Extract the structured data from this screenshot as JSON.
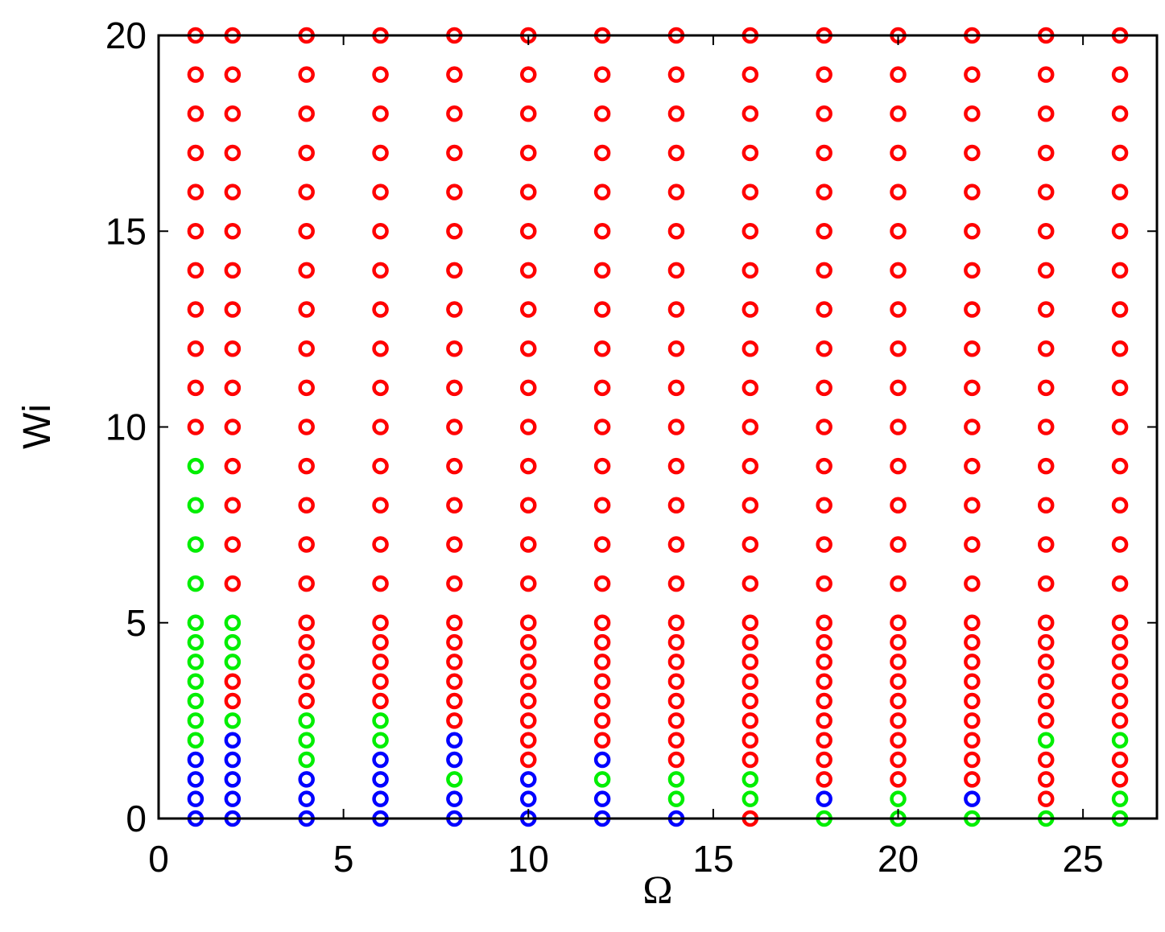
{
  "chart_data": {
    "type": "scatter",
    "xlabel": "Ω",
    "ylabel": "Wi",
    "xlim": [
      0,
      27
    ],
    "ylim": [
      0,
      20
    ],
    "xticks": [
      0,
      5,
      10,
      15,
      20,
      25
    ],
    "yticks": [
      0,
      5,
      10,
      15,
      20
    ],
    "series": [
      {
        "color": "#ff0000",
        "x": [
          1,
          1,
          1,
          1,
          1,
          1,
          1,
          1,
          1,
          1,
          1,
          2,
          2,
          2,
          2,
          2,
          2,
          2,
          2,
          2,
          2,
          2,
          2,
          2,
          2,
          2,
          2,
          2,
          4,
          4,
          4,
          4,
          4,
          4,
          4,
          4,
          4,
          4,
          4,
          4,
          4,
          4,
          4,
          4,
          4,
          4,
          4,
          4,
          6,
          6,
          6,
          6,
          6,
          6,
          6,
          6,
          6,
          6,
          6,
          6,
          6,
          6,
          6,
          6,
          6,
          6,
          6,
          6,
          8,
          8,
          8,
          8,
          8,
          8,
          8,
          8,
          8,
          8,
          8,
          8,
          8,
          8,
          8,
          8,
          8,
          8,
          8,
          8,
          8,
          10,
          10,
          10,
          10,
          10,
          10,
          10,
          10,
          10,
          10,
          10,
          10,
          10,
          10,
          10,
          10,
          10,
          10,
          10,
          10,
          10,
          10,
          10,
          12,
          12,
          12,
          12,
          12,
          12,
          12,
          12,
          12,
          12,
          12,
          12,
          12,
          12,
          12,
          12,
          12,
          12,
          12,
          12,
          12,
          12,
          14,
          14,
          14,
          14,
          14,
          14,
          14,
          14,
          14,
          14,
          14,
          14,
          14,
          14,
          14,
          14,
          14,
          14,
          14,
          14,
          14,
          14,
          14,
          16,
          16,
          16,
          16,
          16,
          16,
          16,
          16,
          16,
          16,
          16,
          16,
          16,
          16,
          16,
          16,
          16,
          16,
          16,
          16,
          16,
          16,
          16,
          16,
          18,
          18,
          18,
          18,
          18,
          18,
          18,
          18,
          18,
          18,
          18,
          18,
          18,
          18,
          18,
          18,
          18,
          18,
          18,
          18,
          18,
          18,
          18,
          18,
          20,
          20,
          20,
          20,
          20,
          20,
          20,
          20,
          20,
          20,
          20,
          20,
          20,
          20,
          20,
          20,
          20,
          20,
          20,
          20,
          20,
          20,
          20,
          20,
          22,
          22,
          22,
          22,
          22,
          22,
          22,
          22,
          22,
          22,
          22,
          22,
          22,
          22,
          22,
          22,
          22,
          22,
          22,
          22,
          22,
          22,
          22,
          22,
          24,
          24,
          24,
          24,
          24,
          24,
          24,
          24,
          24,
          24,
          24,
          24,
          24,
          24,
          24,
          24,
          24,
          24,
          24,
          24,
          24,
          24,
          24,
          24,
          26,
          26,
          26,
          26,
          26,
          26,
          26,
          26,
          26,
          26,
          26,
          26,
          26,
          26,
          26,
          26,
          26,
          26,
          26,
          26,
          26,
          26,
          26
        ],
        "y": [
          10,
          11,
          12,
          13,
          14,
          15,
          16,
          17,
          18,
          19,
          20,
          3,
          3.5,
          6,
          7,
          8,
          9,
          10,
          11,
          12,
          13,
          14,
          15,
          16,
          17,
          18,
          19,
          20,
          3,
          3.5,
          4,
          4.5,
          5,
          6,
          7,
          8,
          9,
          10,
          11,
          12,
          13,
          14,
          15,
          16,
          17,
          18,
          19,
          20,
          3,
          3.5,
          4,
          4.5,
          5,
          6,
          7,
          8,
          9,
          10,
          11,
          12,
          13,
          14,
          15,
          16,
          17,
          18,
          19,
          20,
          2.5,
          3,
          3.5,
          4,
          4.5,
          5,
          6,
          7,
          8,
          9,
          10,
          11,
          12,
          13,
          14,
          15,
          16,
          17,
          18,
          19,
          20,
          1.5,
          2,
          2.5,
          3,
          3.5,
          4,
          4.5,
          5,
          6,
          7,
          8,
          9,
          10,
          11,
          12,
          13,
          14,
          15,
          16,
          17,
          18,
          19,
          20,
          2,
          2.5,
          3,
          3.5,
          4,
          4.5,
          5,
          6,
          7,
          8,
          9,
          10,
          11,
          12,
          13,
          14,
          15,
          16,
          17,
          18,
          19,
          20,
          1.5,
          2,
          2.5,
          3,
          3.5,
          4,
          4.5,
          5,
          6,
          7,
          8,
          9,
          10,
          11,
          12,
          13,
          14,
          15,
          16,
          17,
          18,
          19,
          20,
          0,
          1.5,
          2,
          2.5,
          3,
          3.5,
          4,
          4.5,
          5,
          6,
          7,
          8,
          9,
          10,
          11,
          12,
          13,
          14,
          15,
          16,
          17,
          18,
          19,
          20,
          1,
          1.5,
          2,
          2.5,
          3,
          3.5,
          4,
          4.5,
          5,
          6,
          7,
          8,
          9,
          10,
          11,
          12,
          13,
          14,
          15,
          16,
          17,
          18,
          19,
          20,
          1,
          1.5,
          2,
          2.5,
          3,
          3.5,
          4,
          4.5,
          5,
          6,
          7,
          8,
          9,
          10,
          11,
          12,
          13,
          14,
          15,
          16,
          17,
          18,
          19,
          20,
          1,
          1.5,
          2,
          2.5,
          3,
          3.5,
          4,
          4.5,
          5,
          6,
          7,
          8,
          9,
          10,
          11,
          12,
          13,
          14,
          15,
          16,
          17,
          18,
          19,
          20,
          0.5,
          1,
          1.5,
          2.5,
          3,
          3.5,
          4,
          4.5,
          5,
          6,
          7,
          8,
          9,
          10,
          11,
          12,
          13,
          14,
          15,
          16,
          17,
          18,
          19,
          20,
          1,
          1.5,
          2.5,
          3,
          3.5,
          4,
          4.5,
          5,
          6,
          7,
          8,
          9,
          10,
          11,
          12,
          13,
          14,
          15,
          16,
          17,
          18,
          19,
          20
        ]
      },
      {
        "color": "#00ee00",
        "x": [
          1,
          1,
          1,
          1,
          1,
          1,
          1,
          1,
          1,
          1,
          1,
          2,
          2,
          2,
          2,
          4,
          4,
          4,
          6,
          6,
          8,
          12,
          14,
          14,
          16,
          16,
          18,
          20,
          20,
          22,
          24,
          24,
          26,
          26,
          26
        ],
        "y": [
          2,
          2.5,
          3,
          3.5,
          4,
          4.5,
          5,
          6,
          7,
          8,
          9,
          2.5,
          4,
          4.5,
          5,
          1.5,
          2,
          2.5,
          2,
          2.5,
          1,
          1,
          0.5,
          1,
          0.5,
          1,
          0,
          0,
          0.5,
          0,
          0,
          2,
          0,
          0.5,
          2
        ]
      },
      {
        "color": "#0000ff",
        "x": [
          1,
          1,
          1,
          1,
          2,
          2,
          2,
          2,
          2,
          4,
          4,
          4,
          6,
          6,
          6,
          6,
          8,
          8,
          8,
          8,
          10,
          10,
          10,
          12,
          12,
          12,
          14,
          18,
          22
        ],
        "y": [
          0,
          0.5,
          1,
          1.5,
          0,
          0.5,
          1,
          1.5,
          2,
          0,
          0.5,
          1,
          0,
          0.5,
          1,
          1.5,
          0,
          0.5,
          1.5,
          2,
          0,
          0.5,
          1,
          0,
          0.5,
          1.5,
          0,
          0.5,
          0.5
        ]
      }
    ]
  }
}
